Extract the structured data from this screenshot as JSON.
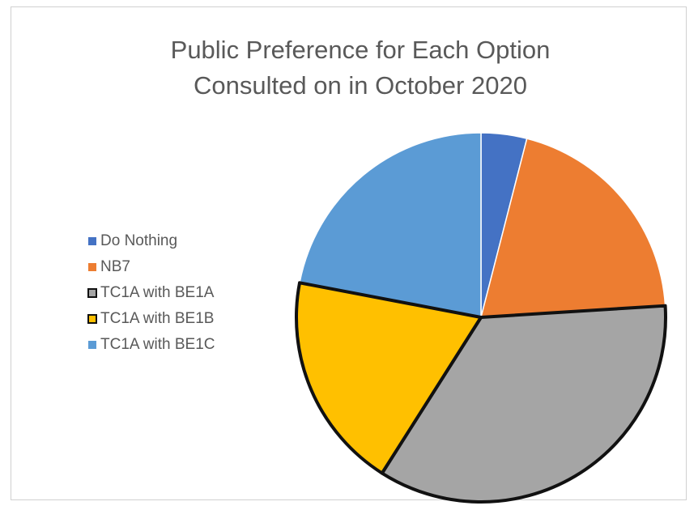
{
  "chart_data": {
    "type": "pie",
    "title": "Public Preference for Each Option Consulted on in October 2020",
    "title_lines": [
      "Public Preference for Each Option",
      "Consulted on in October 2020"
    ],
    "legend_position": "left",
    "slices": [
      {
        "label": "Do Nothing",
        "value": 4,
        "color": "#4472C4",
        "outlined": false
      },
      {
        "label": "NB7",
        "value": 20,
        "color": "#ED7D31",
        "outlined": false
      },
      {
        "label": "TC1A with BE1A",
        "value": 35,
        "color": "#A5A5A5",
        "outlined": true
      },
      {
        "label": "TC1A with BE1B",
        "value": 19,
        "color": "#FFC000",
        "outlined": true
      },
      {
        "label": "TC1A with BE1C",
        "value": 22,
        "color": "#5B9BD5",
        "outlined": false
      }
    ]
  }
}
